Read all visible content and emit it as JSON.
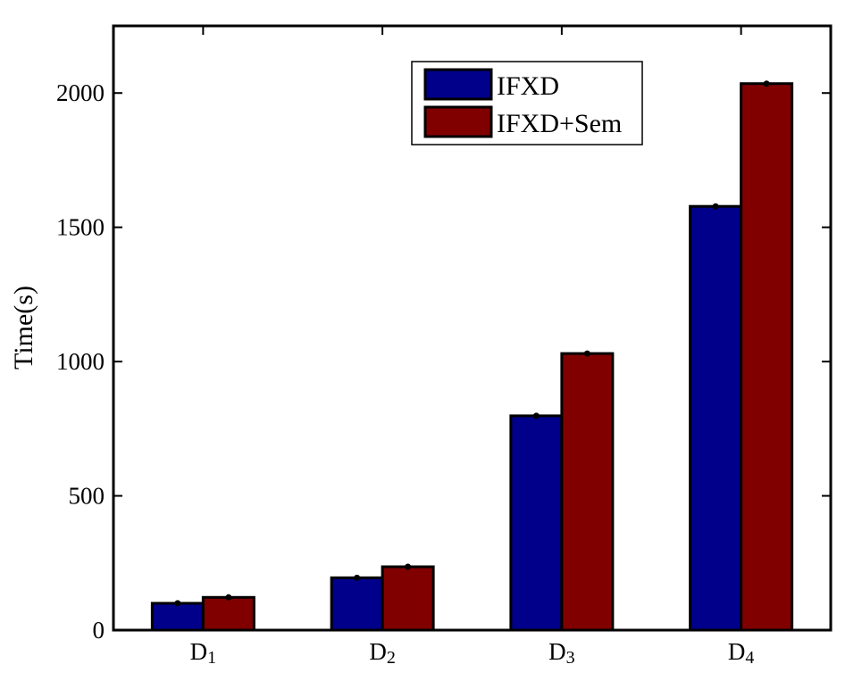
{
  "chart_data": {
    "type": "bar",
    "categories": [
      {
        "base": "D",
        "sub": "1"
      },
      {
        "base": "D",
        "sub": "2"
      },
      {
        "base": "D",
        "sub": "3"
      },
      {
        "base": "D",
        "sub": "4"
      }
    ],
    "series": [
      {
        "name": "IFXD",
        "color": "#00008b",
        "values": [
          100,
          195,
          798,
          1578
        ]
      },
      {
        "name": "IFXD+Sem",
        "color": "#800000",
        "values": [
          122,
          236,
          1030,
          2035
        ]
      }
    ],
    "xlabel": "",
    "ylabel": "Time(s)",
    "ylim": [
      0,
      2250
    ],
    "yticks": [
      0,
      500,
      1000,
      1500,
      2000
    ],
    "error_markers": true,
    "legend_position": "top-right",
    "grid": false
  }
}
